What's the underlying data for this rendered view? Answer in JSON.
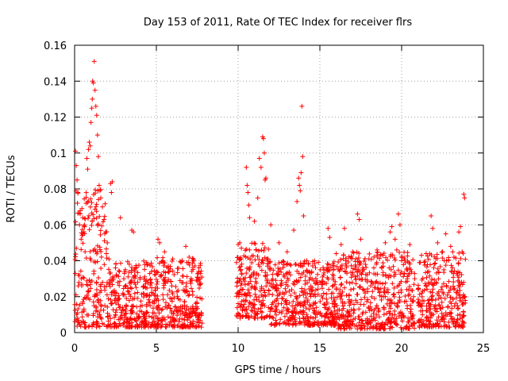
{
  "chart_data": {
    "type": "scatter",
    "title": "Day 153 of 2011, Rate Of TEC Index for receiver flrs",
    "xlabel": "GPS time / hours",
    "ylabel": "ROTI / TECUs",
    "xlim": [
      0,
      25
    ],
    "ylim": [
      0,
      0.16
    ],
    "xticks": [
      0,
      5,
      10,
      15,
      20,
      25
    ],
    "yticks": [
      0,
      0.02,
      0.04,
      0.06,
      0.08,
      0.1,
      0.12,
      0.14,
      0.16
    ],
    "xtick_labels": [
      "0",
      "5",
      "10",
      "15",
      "20",
      "25"
    ],
    "ytick_labels": [
      "0",
      "0.02",
      "0.04",
      "0.06",
      "0.08",
      "0.1",
      "0.12",
      "0.14",
      "0.16"
    ],
    "grid": true,
    "marker": "+",
    "series": [
      {
        "name": "ROTI",
        "color": "#ff0000",
        "points": [
          [
            0.05,
            0.101
          ],
          [
            0.1,
            0.093
          ],
          [
            0.15,
            0.085
          ],
          [
            0.2,
            0.078
          ],
          [
            0.3,
            0.06
          ],
          [
            0.4,
            0.052
          ],
          [
            0.5,
            0.064
          ],
          [
            0.6,
            0.06
          ],
          [
            0.7,
            0.072
          ],
          [
            0.75,
            0.097
          ],
          [
            0.8,
            0.091
          ],
          [
            0.85,
            0.102
          ],
          [
            0.9,
            0.106
          ],
          [
            0.95,
            0.104
          ],
          [
            1.0,
            0.117
          ],
          [
            1.05,
            0.125
          ],
          [
            1.08,
            0.13
          ],
          [
            1.1,
            0.14
          ],
          [
            1.15,
            0.139
          ],
          [
            1.2,
            0.151
          ],
          [
            1.25,
            0.135
          ],
          [
            1.3,
            0.126
          ],
          [
            1.35,
            0.121
          ],
          [
            1.4,
            0.11
          ],
          [
            1.45,
            0.098
          ],
          [
            1.5,
            0.082
          ],
          [
            1.55,
            0.079
          ],
          [
            1.6,
            0.075
          ],
          [
            1.7,
            0.07
          ],
          [
            1.8,
            0.063
          ],
          [
            1.9,
            0.056
          ],
          [
            2.0,
            0.05
          ],
          [
            2.2,
            0.083
          ],
          [
            2.25,
            0.078
          ],
          [
            2.3,
            0.084
          ],
          [
            2.1,
            0.041
          ],
          [
            2.5,
            0.036
          ],
          [
            2.8,
            0.064
          ],
          [
            3.1,
            0.035
          ],
          [
            3.5,
            0.057
          ],
          [
            3.6,
            0.056
          ],
          [
            4.4,
            0.039
          ],
          [
            4.7,
            0.034
          ],
          [
            5.1,
            0.052
          ],
          [
            5.2,
            0.05
          ],
          [
            5.5,
            0.045
          ],
          [
            6.0,
            0.041
          ],
          [
            6.5,
            0.039
          ],
          [
            6.8,
            0.048
          ],
          [
            7.0,
            0.042
          ],
          [
            7.3,
            0.04
          ],
          [
            7.6,
            0.036
          ],
          [
            7.7,
            0.033
          ],
          [
            9.9,
            0.039
          ],
          [
            10.1,
            0.05
          ],
          [
            10.2,
            0.047
          ],
          [
            10.5,
            0.092
          ],
          [
            10.55,
            0.082
          ],
          [
            10.6,
            0.078
          ],
          [
            10.65,
            0.071
          ],
          [
            10.7,
            0.064
          ],
          [
            11.0,
            0.062
          ],
          [
            11.2,
            0.075
          ],
          [
            11.3,
            0.097
          ],
          [
            11.4,
            0.092
          ],
          [
            11.5,
            0.109
          ],
          [
            11.55,
            0.108
          ],
          [
            11.6,
            0.1
          ],
          [
            11.65,
            0.085
          ],
          [
            11.7,
            0.086
          ],
          [
            12.0,
            0.06
          ],
          [
            12.5,
            0.05
          ],
          [
            13.0,
            0.045
          ],
          [
            13.4,
            0.057
          ],
          [
            13.6,
            0.073
          ],
          [
            13.7,
            0.086
          ],
          [
            13.75,
            0.082
          ],
          [
            13.8,
            0.079
          ],
          [
            13.85,
            0.089
          ],
          [
            13.9,
            0.126
          ],
          [
            13.95,
            0.098
          ],
          [
            14.0,
            0.065
          ],
          [
            14.2,
            0.04
          ],
          [
            14.5,
            0.034
          ],
          [
            15.0,
            0.028
          ],
          [
            15.5,
            0.058
          ],
          [
            15.6,
            0.053
          ],
          [
            16.0,
            0.044
          ],
          [
            16.3,
            0.049
          ],
          [
            16.5,
            0.058
          ],
          [
            17.0,
            0.045
          ],
          [
            17.3,
            0.066
          ],
          [
            17.4,
            0.063
          ],
          [
            17.5,
            0.052
          ],
          [
            18.0,
            0.041
          ],
          [
            18.3,
            0.036
          ],
          [
            18.5,
            0.046
          ],
          [
            19.0,
            0.05
          ],
          [
            19.3,
            0.056
          ],
          [
            19.4,
            0.059
          ],
          [
            19.6,
            0.052
          ],
          [
            19.7,
            0.046
          ],
          [
            19.8,
            0.066
          ],
          [
            19.9,
            0.06
          ],
          [
            20.0,
            0.04
          ],
          [
            20.3,
            0.035
          ],
          [
            20.5,
            0.049
          ],
          [
            20.8,
            0.03
          ],
          [
            21.5,
            0.044
          ],
          [
            21.8,
            0.065
          ],
          [
            21.9,
            0.058
          ],
          [
            22.2,
            0.05
          ],
          [
            22.5,
            0.045
          ],
          [
            22.7,
            0.055
          ],
          [
            23.0,
            0.048
          ],
          [
            23.2,
            0.042
          ],
          [
            23.5,
            0.056
          ],
          [
            23.6,
            0.059
          ],
          [
            23.7,
            0.045
          ],
          [
            23.8,
            0.077
          ],
          [
            23.85,
            0.075
          ]
        ],
        "bulk_ranges": [
          {
            "x": [
              0.0,
              2.0
            ],
            "y": [
              0.003,
              0.08
            ]
          },
          {
            "x": [
              2.0,
              4.5
            ],
            "y": [
              0.003,
              0.04
            ]
          },
          {
            "x": [
              4.5,
              7.8
            ],
            "y": [
              0.003,
              0.042
            ]
          },
          {
            "x": [
              9.9,
              12.0
            ],
            "y": [
              0.008,
              0.05
            ]
          },
          {
            "x": [
              12.0,
              16.0
            ],
            "y": [
              0.004,
              0.04
            ]
          },
          {
            "x": [
              16.0,
              20.8
            ],
            "y": [
              0.002,
              0.045
            ]
          },
          {
            "x": [
              21.0,
              23.9
            ],
            "y": [
              0.003,
              0.045
            ]
          }
        ],
        "bulk_count": 2300
      }
    ]
  }
}
